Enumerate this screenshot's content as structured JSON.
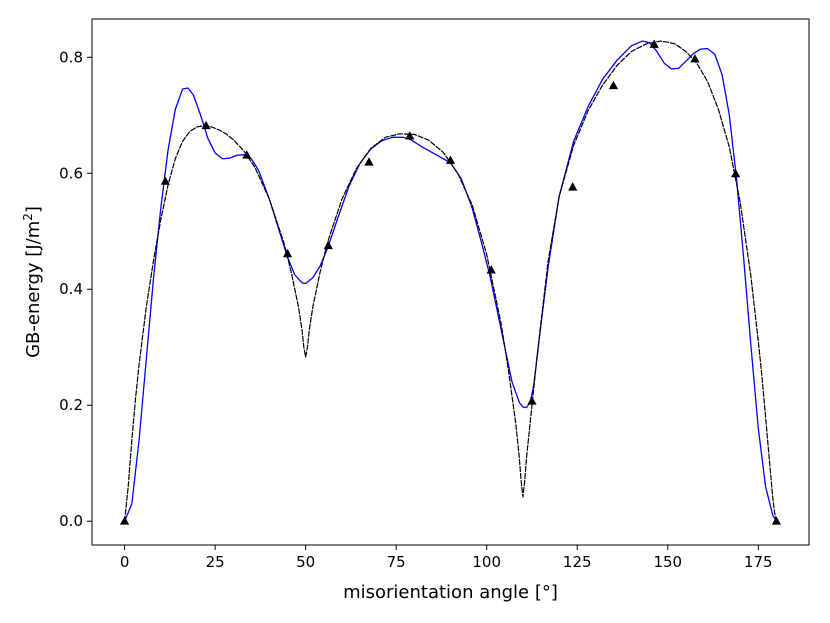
{
  "chart_data": {
    "type": "line",
    "xlabel": "misorientation angle [°]",
    "ylabel": {
      "prefix": "GB-energy [J/m",
      "sup": "2",
      "suffix": "]"
    },
    "xlim": [
      -9,
      189
    ],
    "ylim": [
      -0.041,
      0.866
    ],
    "xticks": [
      0,
      25,
      50,
      75,
      100,
      125,
      150,
      175
    ],
    "yticks": [
      0.0,
      0.2,
      0.4,
      0.6,
      0.8
    ],
    "ytick_labels": [
      "0.0",
      "0.2",
      "0.4",
      "0.6",
      "0.8"
    ],
    "grid": false,
    "legend": "none",
    "series": [
      {
        "kind": "markers",
        "marker": "triangle",
        "color": "#000000",
        "x": [
          0,
          11.25,
          22.5,
          33.75,
          45,
          56.25,
          67.5,
          78.75,
          90,
          101.25,
          112.5,
          123.75,
          135,
          146.25,
          157.5,
          168.75,
          180
        ],
        "y": [
          0.0,
          0.586,
          0.682,
          0.631,
          0.461,
          0.475,
          0.619,
          0.664,
          0.622,
          0.433,
          0.207,
          0.576,
          0.751,
          0.822,
          0.797,
          0.599,
          0.0
        ]
      },
      {
        "kind": "line",
        "style": "solid",
        "color": "#0000ff",
        "x": [
          0,
          2,
          4,
          6,
          8,
          10,
          12,
          14,
          16,
          17.5,
          19,
          21,
          23,
          25,
          27,
          29,
          31,
          33,
          35,
          37,
          40,
          43,
          45,
          47,
          49,
          50,
          52,
          54,
          56,
          59,
          62,
          65,
          68,
          71,
          74,
          77,
          79,
          82,
          86,
          90,
          93,
          96,
          99,
          101,
          103,
          105,
          107,
          109,
          110,
          111,
          112,
          113,
          115,
          117,
          120,
          124,
          128,
          132,
          136,
          140,
          143,
          145,
          147,
          149,
          151,
          153,
          155,
          157,
          159,
          161,
          163,
          165,
          167,
          169,
          171,
          173,
          175,
          177,
          179,
          180
        ],
        "y": [
          0.0,
          0.03,
          0.14,
          0.28,
          0.42,
          0.54,
          0.64,
          0.71,
          0.745,
          0.747,
          0.735,
          0.7,
          0.66,
          0.635,
          0.625,
          0.626,
          0.631,
          0.632,
          0.625,
          0.605,
          0.555,
          0.495,
          0.455,
          0.425,
          0.411,
          0.41,
          0.42,
          0.44,
          0.47,
          0.525,
          0.578,
          0.617,
          0.642,
          0.656,
          0.662,
          0.662,
          0.658,
          0.646,
          0.632,
          0.618,
          0.59,
          0.54,
          0.47,
          0.42,
          0.36,
          0.3,
          0.24,
          0.205,
          0.197,
          0.196,
          0.205,
          0.235,
          0.34,
          0.44,
          0.56,
          0.655,
          0.715,
          0.762,
          0.795,
          0.82,
          0.828,
          0.825,
          0.81,
          0.79,
          0.78,
          0.781,
          0.793,
          0.806,
          0.814,
          0.815,
          0.805,
          0.77,
          0.7,
          0.59,
          0.45,
          0.3,
          0.16,
          0.06,
          0.01,
          0.0
        ]
      },
      {
        "kind": "line",
        "style": "dashed",
        "color": "#000000",
        "x": [
          0,
          1,
          2,
          3,
          4,
          6,
          8,
          10,
          12,
          14,
          16,
          18,
          20,
          22,
          24,
          26,
          28,
          30,
          33,
          36,
          40,
          44,
          46,
          48,
          49,
          49.5,
          50,
          50.5,
          51,
          52,
          54,
          56,
          60,
          64,
          68,
          72,
          76,
          80,
          84,
          88,
          92,
          96,
          100,
          104,
          106,
          108,
          109,
          109.5,
          110,
          110.5,
          111,
          112,
          114,
          117,
          120,
          124,
          128,
          132,
          136,
          140,
          144,
          148,
          150,
          152,
          155,
          158,
          161,
          164,
          167,
          170,
          173,
          175,
          176,
          177,
          178,
          179,
          179.5,
          180
        ],
        "y": [
          0.0,
          0.06,
          0.14,
          0.21,
          0.27,
          0.37,
          0.45,
          0.52,
          0.58,
          0.625,
          0.655,
          0.672,
          0.68,
          0.682,
          0.68,
          0.675,
          0.668,
          0.658,
          0.638,
          0.61,
          0.555,
          0.48,
          0.43,
          0.37,
          0.33,
          0.3,
          0.283,
          0.3,
          0.33,
          0.37,
          0.43,
          0.48,
          0.555,
          0.608,
          0.643,
          0.662,
          0.668,
          0.667,
          0.657,
          0.636,
          0.6,
          0.545,
          0.46,
          0.34,
          0.26,
          0.17,
          0.11,
          0.07,
          0.042,
          0.07,
          0.11,
          0.17,
          0.29,
          0.45,
          0.56,
          0.648,
          0.708,
          0.752,
          0.786,
          0.81,
          0.823,
          0.828,
          0.826,
          0.823,
          0.81,
          0.79,
          0.758,
          0.71,
          0.645,
          0.55,
          0.42,
          0.31,
          0.25,
          0.18,
          0.11,
          0.04,
          0.015,
          0.0
        ]
      }
    ]
  }
}
